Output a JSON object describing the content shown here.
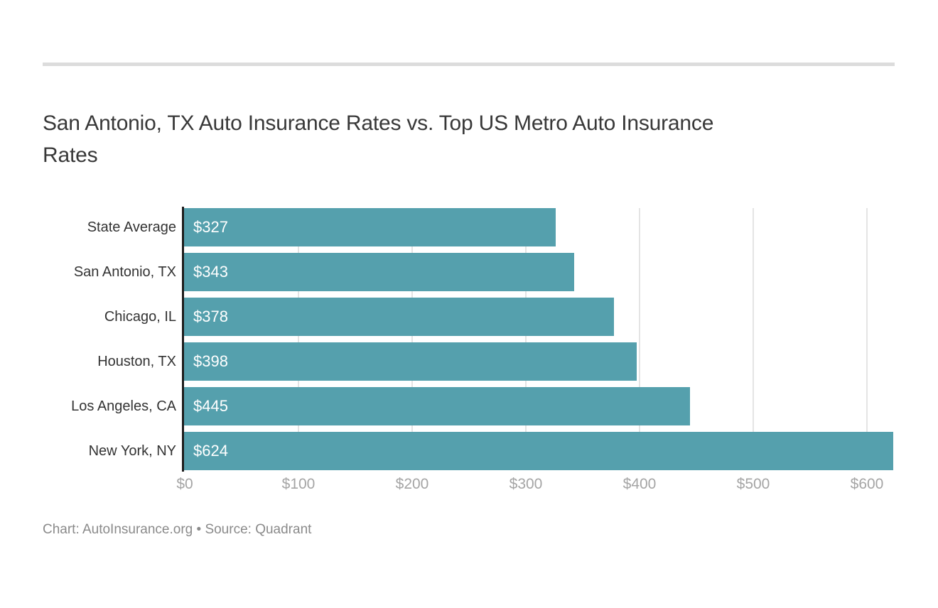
{
  "page": {
    "title_line1": "San Antonio, TX Auto Insurance Rates vs. Top US Metro Auto Insurance",
    "title_line2": "Rates",
    "footer": "Chart: AutoInsurance.org • Source: Quadrant"
  },
  "colors": {
    "background": "#ffffff",
    "bar_fill": "#55a0ad",
    "axis_line": "#1e1e1e",
    "title_text": "#383838",
    "category_label_text": "#333333",
    "value_label_text": "#ffffff",
    "tick_label_text": "#a5a5a5",
    "footer_text": "#8a8a8a",
    "divider": "#dcdcdc",
    "gridline": "#e4e4e4"
  },
  "chart_data": {
    "type": "bar",
    "orientation": "horizontal",
    "title": "San Antonio, TX Auto Insurance Rates vs. Top US Metro Auto Insurance Rates",
    "categories": [
      "State Average",
      "San Antonio, TX",
      "Chicago, IL",
      "Houston, TX",
      "Los Angeles, CA",
      "New York, NY"
    ],
    "values": [
      327,
      343,
      378,
      398,
      445,
      624
    ],
    "value_labels": [
      "$327",
      "$343",
      "$378",
      "$398",
      "$445",
      "$624"
    ],
    "x_ticks": [
      "$0",
      "$100",
      "$200",
      "$300",
      "$400",
      "$500",
      "$600"
    ],
    "x_tick_values": [
      0,
      100,
      200,
      300,
      400,
      500,
      600
    ],
    "xlim": [
      0,
      625
    ],
    "xlabel": "",
    "ylabel": "",
    "grid": "vertical-only",
    "legend": "none",
    "footer": "Chart: AutoInsurance.org • Source: Quadrant"
  }
}
